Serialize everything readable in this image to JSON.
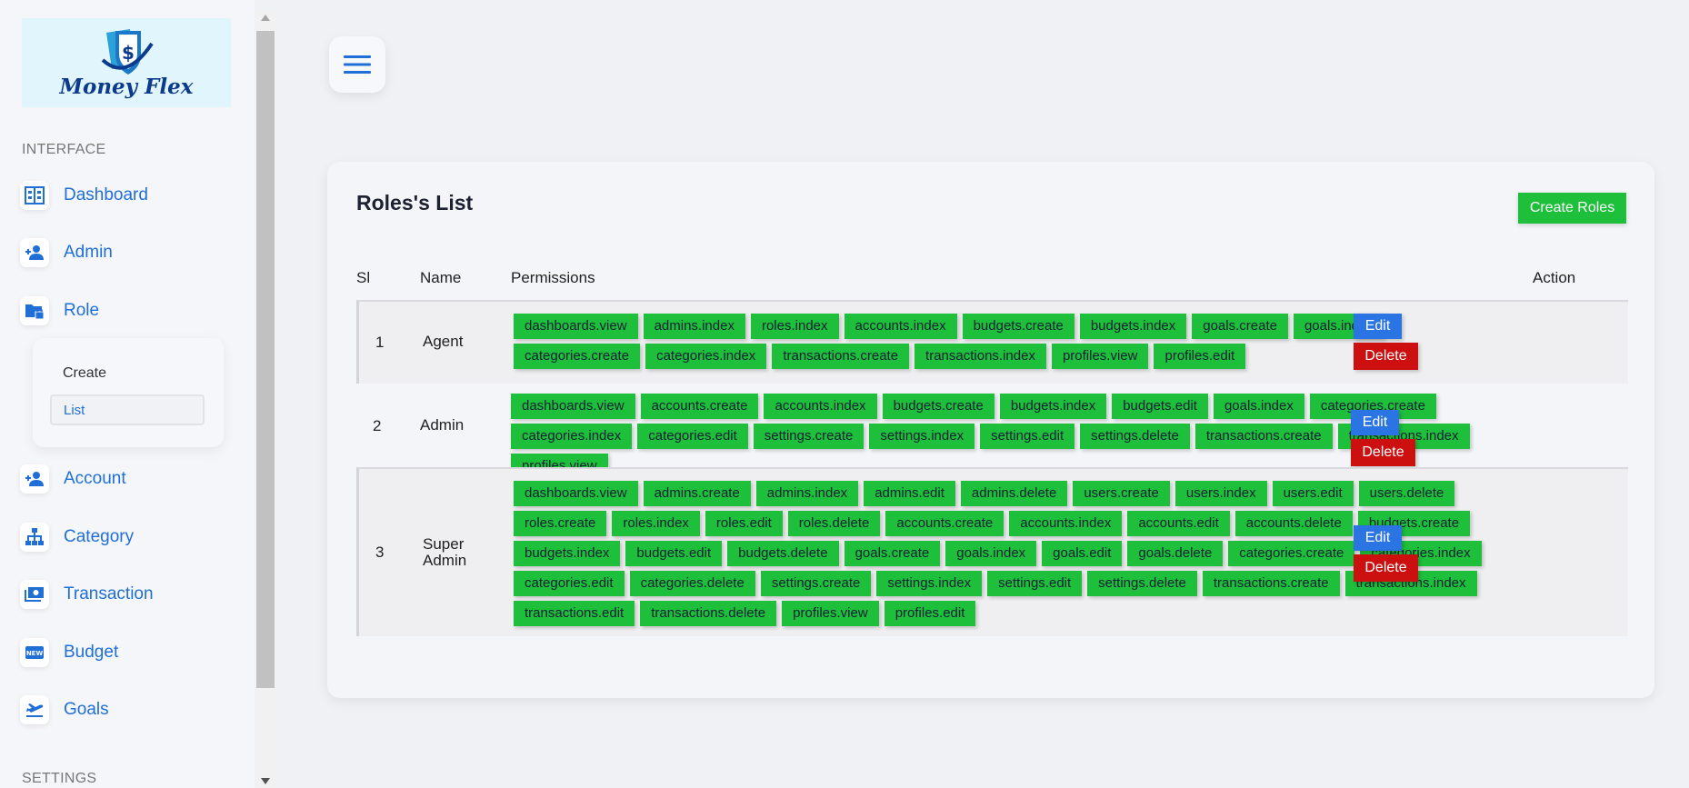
{
  "sidebar": {
    "logo_text": "Money Flex",
    "section_interface": "INTERFACE",
    "section_settings": "SETTINGS",
    "items": [
      {
        "label": "Dashboard",
        "icon": "dashboard-icon"
      },
      {
        "label": "Admin",
        "icon": "add-person-icon"
      },
      {
        "label": "Role",
        "icon": "lock-folder-icon"
      },
      {
        "label": "Account",
        "icon": "add-person-icon"
      },
      {
        "label": "Category",
        "icon": "hierarchy-icon"
      },
      {
        "label": "Transaction",
        "icon": "payments-icon"
      },
      {
        "label": "Budget",
        "icon": "new-badge-icon"
      },
      {
        "label": "Goals",
        "icon": "flight-takeoff-icon"
      }
    ],
    "role_submenu": {
      "create": "Create",
      "list": "List"
    }
  },
  "card": {
    "title": "Roles's List",
    "create_button": "Create Roles",
    "columns": {
      "sl": "Sl",
      "name": "Name",
      "permissions": "Permissions",
      "action": "Action"
    },
    "edit_label": "Edit",
    "delete_label": "Delete",
    "rows": [
      {
        "sl": "1",
        "name": "Agent",
        "permissions": [
          "dashboards.view",
          "admins.index",
          "roles.index",
          "accounts.index",
          "budgets.create",
          "budgets.index",
          "goals.create",
          "goals.index",
          "categories.create",
          "categories.index",
          "transactions.create",
          "transactions.index",
          "profiles.view",
          "profiles.edit"
        ]
      },
      {
        "sl": "2",
        "name": "Admin",
        "permissions": [
          "dashboards.view",
          "accounts.create",
          "accounts.index",
          "budgets.create",
          "budgets.index",
          "budgets.edit",
          "goals.index",
          "categories.create",
          "categories.index",
          "categories.edit",
          "settings.create",
          "settings.index",
          "settings.edit",
          "settings.delete",
          "transactions.create",
          "transactions.index",
          "profiles.view"
        ]
      },
      {
        "sl": "3",
        "name": "Super Admin",
        "permissions": [
          "dashboards.view",
          "admins.create",
          "admins.index",
          "admins.edit",
          "admins.delete",
          "users.create",
          "users.index",
          "users.edit",
          "users.delete",
          "roles.create",
          "roles.index",
          "roles.edit",
          "roles.delete",
          "accounts.create",
          "accounts.index",
          "accounts.edit",
          "accounts.delete",
          "budgets.create",
          "budgets.index",
          "budgets.edit",
          "budgets.delete",
          "goals.create",
          "goals.index",
          "goals.edit",
          "goals.delete",
          "categories.create",
          "categories.index",
          "categories.edit",
          "categories.delete",
          "settings.create",
          "settings.index",
          "settings.edit",
          "settings.delete",
          "transactions.create",
          "transactions.index",
          "transactions.edit",
          "transactions.delete",
          "profiles.view",
          "profiles.edit"
        ]
      }
    ]
  },
  "colors": {
    "accent": "#1f6fd6",
    "badge_green": "#1ebf3b",
    "edit_blue": "#2a74e4",
    "delete_red": "#cc1010"
  }
}
